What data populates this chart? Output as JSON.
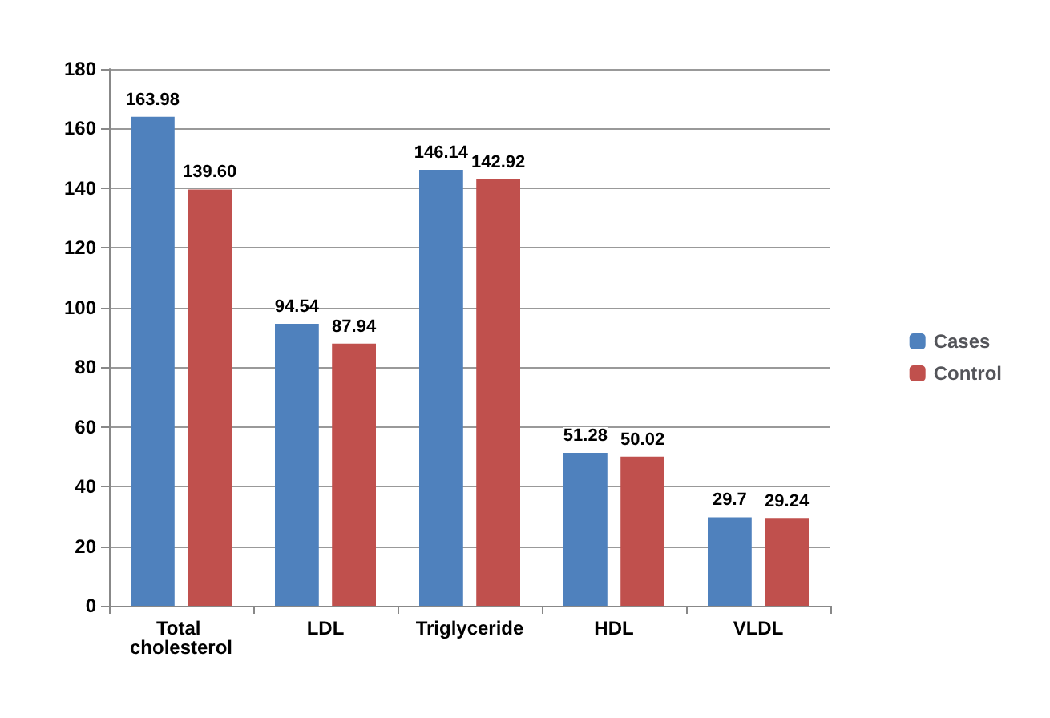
{
  "chart_data": {
    "type": "bar",
    "categories": [
      "Total cholesterol",
      "LDL",
      "Triglyceride",
      "HDL",
      "VLDL"
    ],
    "series": [
      {
        "name": "Cases",
        "color": "#4f81bd",
        "values": [
          163.98,
          94.54,
          146.14,
          51.28,
          29.7
        ],
        "value_labels": [
          "163.98",
          "94.54",
          "146.14",
          "51.28",
          "29.7"
        ]
      },
      {
        "name": "Control",
        "color": "#c0504d",
        "values": [
          139.6,
          87.94,
          142.92,
          50.02,
          29.24
        ],
        "value_labels": [
          "139.60",
          "87.94",
          "142.92",
          "50.02",
          "29.24"
        ]
      }
    ],
    "ylim": [
      0,
      180
    ],
    "yticks": [
      0,
      20,
      40,
      60,
      80,
      100,
      120,
      140,
      160,
      180
    ],
    "grid": "y",
    "legend": "right"
  }
}
